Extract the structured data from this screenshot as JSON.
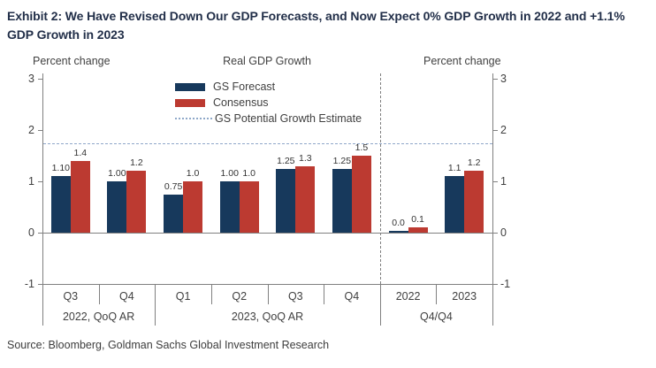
{
  "page": {
    "title": "Exhibit 2: We Have Revised Down Our GDP Forecasts, and Now Expect 0% GDP Growth in 2022 and +1.1%\nGDP Growth in 2023",
    "source": "Source: Bloomberg, Goldman Sachs Global Investment Research"
  },
  "legend": {
    "items": [
      {
        "label": "GS Forecast",
        "color": "#17395C",
        "swatch": "bar"
      },
      {
        "label": "Consensus",
        "color": "#BC3A31",
        "swatch": "bar"
      },
      {
        "label": "GS Potential Growth Estimate",
        "color": "#8FA8C9",
        "swatch": "dotted-line"
      }
    ]
  },
  "chart_data": {
    "type": "bar",
    "title": "Real GDP Growth",
    "left_axis_label": "Percent change",
    "right_axis_label": "Percent change",
    "ylim": [
      -1,
      3
    ],
    "yticks": [
      3,
      2,
      1,
      0,
      -1
    ],
    "grid": false,
    "legend_position": "top-center",
    "categories": [
      "Q3",
      "Q4",
      "Q1",
      "Q2",
      "Q3",
      "Q4",
      "2022",
      "2023"
    ],
    "groups": [
      {
        "label": "2022, QoQ AR",
        "span": [
          0,
          2
        ]
      },
      {
        "label": "2023, QoQ AR",
        "span": [
          2,
          6
        ]
      },
      {
        "label": "Q4/Q4",
        "span": [
          6,
          8
        ]
      }
    ],
    "series": [
      {
        "name": "GS Forecast",
        "color": "#17395C",
        "values": [
          1.1,
          1.0,
          0.75,
          1.0,
          1.25,
          1.25,
          0.0,
          1.1
        ],
        "labels": [
          "1.10",
          "1.00",
          "0.75",
          "1.00",
          "1.25",
          "1.25",
          "0.0",
          "1.1"
        ]
      },
      {
        "name": "Consensus",
        "color": "#BC3A31",
        "values": [
          1.4,
          1.2,
          1.0,
          1.0,
          1.3,
          1.5,
          0.1,
          1.2
        ],
        "labels": [
          "1.4",
          "1.2",
          "1.0",
          "1.0",
          "1.3",
          "1.5",
          "0.1",
          "1.2"
        ]
      }
    ],
    "reference_line": {
      "name": "GS Potential Growth Estimate",
      "value": 1.75,
      "color": "#8FA8C9"
    },
    "section_separator_after_category": 6
  },
  "colors": {
    "title": "#222F49",
    "axis": "#808080",
    "text": "#404040",
    "data_label": "#333333",
    "separator": "#7F7F7F",
    "background": "#FFFFFF"
  }
}
